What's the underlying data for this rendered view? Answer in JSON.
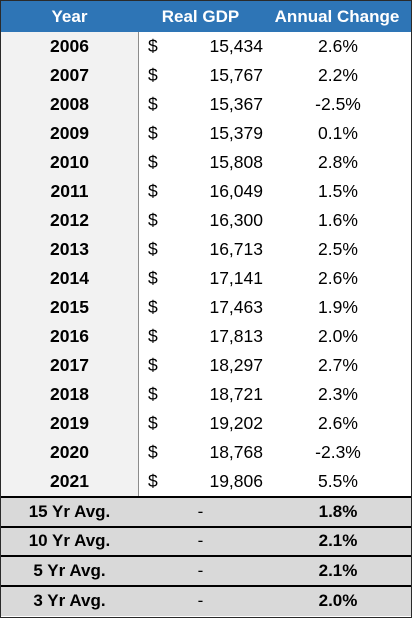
{
  "table": {
    "headers": {
      "year": "Year",
      "gdp": "Real GDP",
      "change": "Annual Change"
    },
    "currency_symbol": "$",
    "rows": [
      {
        "year": "2006",
        "gdp": "15,434",
        "change": "2.6%"
      },
      {
        "year": "2007",
        "gdp": "15,767",
        "change": "2.2%"
      },
      {
        "year": "2008",
        "gdp": "15,367",
        "change": "-2.5%"
      },
      {
        "year": "2009",
        "gdp": "15,379",
        "change": "0.1%"
      },
      {
        "year": "2010",
        "gdp": "15,808",
        "change": "2.8%"
      },
      {
        "year": "2011",
        "gdp": "16,049",
        "change": "1.5%"
      },
      {
        "year": "2012",
        "gdp": "16,300",
        "change": "1.6%"
      },
      {
        "year": "2013",
        "gdp": "16,713",
        "change": "2.5%"
      },
      {
        "year": "2014",
        "gdp": "17,141",
        "change": "2.6%"
      },
      {
        "year": "2015",
        "gdp": "17,463",
        "change": "1.9%"
      },
      {
        "year": "2016",
        "gdp": "17,813",
        "change": "2.0%"
      },
      {
        "year": "2017",
        "gdp": "18,297",
        "change": "2.7%"
      },
      {
        "year": "2018",
        "gdp": "18,721",
        "change": "2.3%"
      },
      {
        "year": "2019",
        "gdp": "19,202",
        "change": "2.6%"
      },
      {
        "year": "2020",
        "gdp": "18,768",
        "change": "-2.3%"
      },
      {
        "year": "2021",
        "gdp": "19,806",
        "change": "5.5%"
      }
    ],
    "summary": [
      {
        "label": "15 Yr Avg.",
        "gdp": "-",
        "change": "1.8%"
      },
      {
        "label": "10 Yr Avg.",
        "gdp": "-",
        "change": "2.1%"
      },
      {
        "label": "5 Yr Avg.",
        "gdp": "-",
        "change": "2.1%"
      },
      {
        "label": "3 Yr Avg.",
        "gdp": "-",
        "change": "2.0%"
      }
    ]
  },
  "colors": {
    "header_bg": "#2e75b6",
    "year_col_bg": "#f2f2f2",
    "summary_bg": "#d9d9d9"
  }
}
